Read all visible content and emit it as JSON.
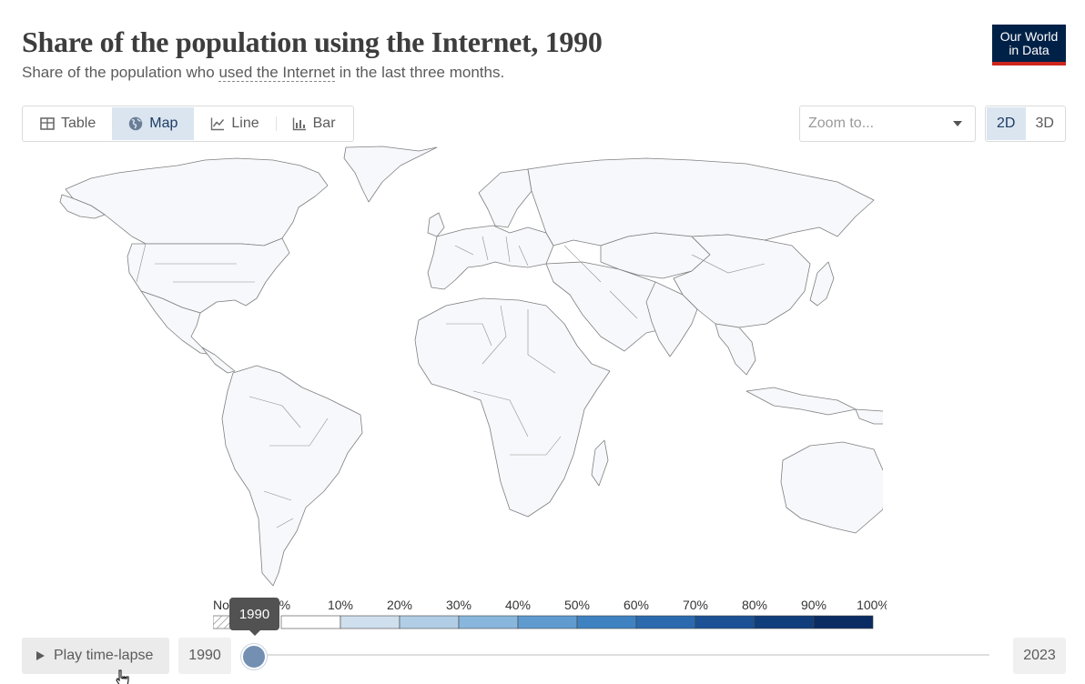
{
  "header": {
    "title": "Share of the population using the Internet, 1990",
    "subtitle_pre": "Share of the population who ",
    "subtitle_link": "used the Internet",
    "subtitle_post": " in the last three months.",
    "logo_line1": "Our World",
    "logo_line2": "in Data"
  },
  "tabs": [
    {
      "label": "Table",
      "icon": "table-icon",
      "active": false
    },
    {
      "label": "Map",
      "icon": "globe-icon",
      "active": true
    },
    {
      "label": "Line",
      "icon": "line-chart-icon",
      "active": false
    },
    {
      "label": "Bar",
      "icon": "bar-chart-icon",
      "active": false
    }
  ],
  "zoom": {
    "placeholder": "Zoom to..."
  },
  "projection": {
    "options": [
      "2D",
      "3D"
    ],
    "selected": "2D"
  },
  "legend": {
    "no_data_label": "No data",
    "bins": [
      {
        "label": "0%",
        "color": "#ffffff"
      },
      {
        "label": "10%",
        "color": "#cfdfee"
      },
      {
        "label": "20%",
        "color": "#b2cde6"
      },
      {
        "label": "30%",
        "color": "#89b6dc"
      },
      {
        "label": "40%",
        "color": "#5f9bcf"
      },
      {
        "label": "50%",
        "color": "#3f82c1"
      },
      {
        "label": "60%",
        "color": "#2b6aae"
      },
      {
        "label": "70%",
        "color": "#1c5195"
      },
      {
        "label": "80%",
        "color": "#103d7c"
      },
      {
        "label": "90%",
        "color": "#0b2b63"
      }
    ],
    "end_label": "100%"
  },
  "timeline": {
    "play_label": "Play time-lapse",
    "start_year": "1990",
    "end_year": "2023",
    "current_year": "1990",
    "position": 0
  },
  "colors": {
    "land": "#f6f8fb",
    "border": "#7f7f7f",
    "accent": "#dbe5f0",
    "logo_bg": "#002147",
    "logo_bar": "#ce261e"
  }
}
